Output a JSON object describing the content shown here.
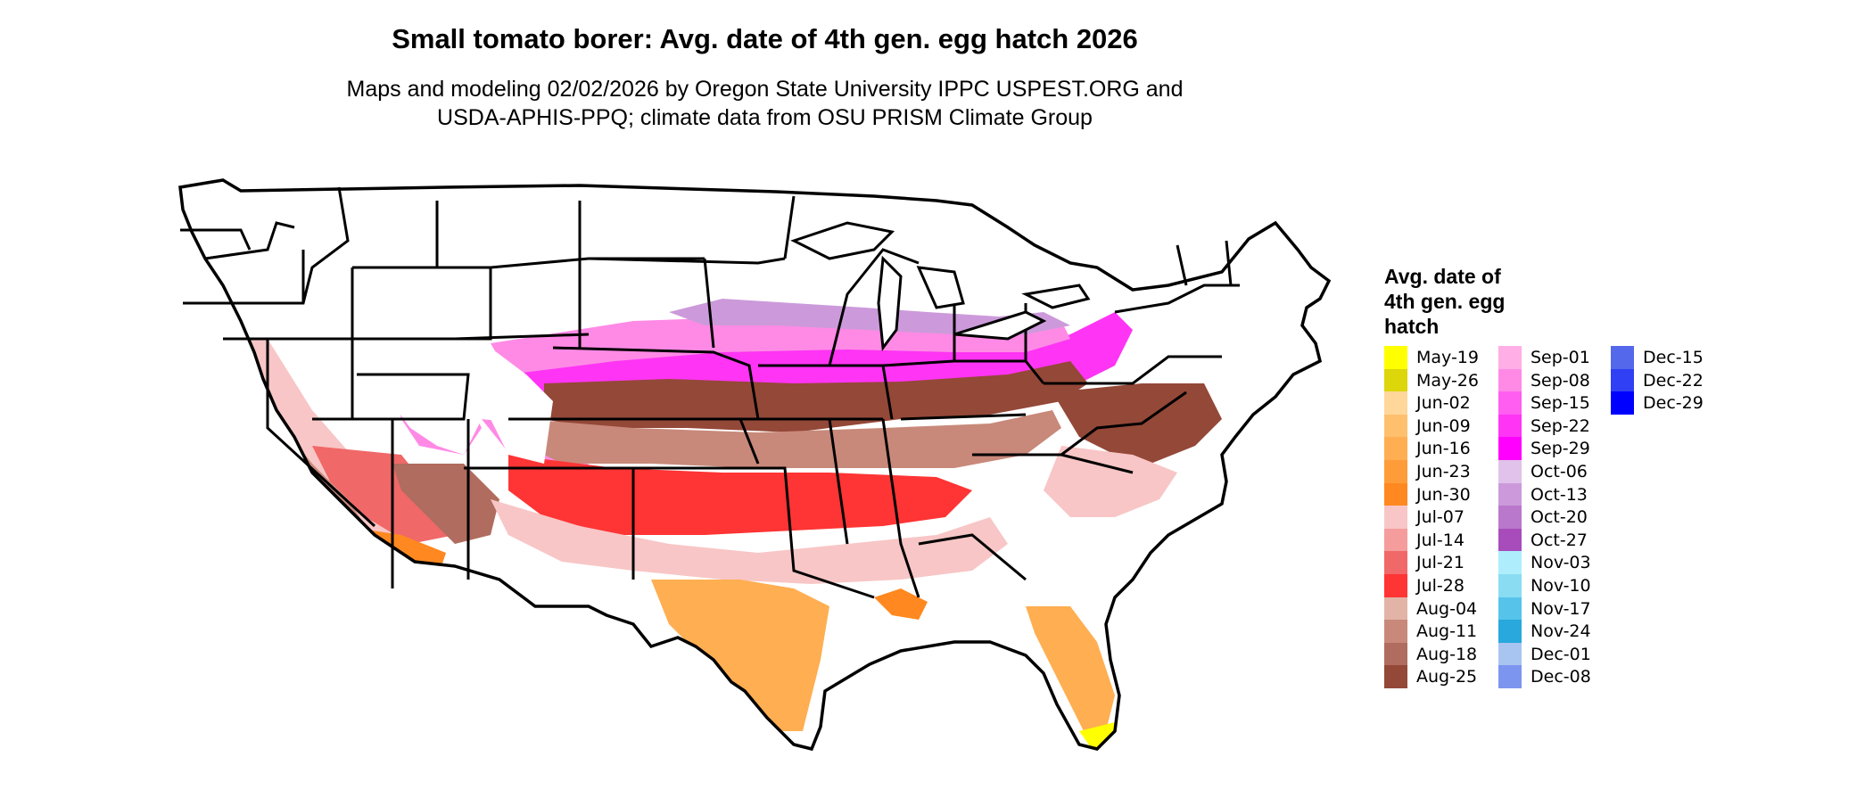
{
  "title": "Small tomato borer: Avg. date of 4th gen. egg hatch 2026",
  "subtitle_line1": "Maps and modeling 02/02/2026 by Oregon State University IPPC USPEST.ORG and",
  "subtitle_line2": "USDA-APHIS-PPQ; climate data from OSU PRISM Climate Group",
  "legend": {
    "title_lines": [
      "Avg. date of",
      "4th gen. egg",
      "hatch"
    ],
    "columns": [
      [
        {
          "label": "May-19",
          "color": "#ffff00"
        },
        {
          "label": "May-26",
          "color": "#dcd60a"
        },
        {
          "label": "Jun-02",
          "color": "#ffd79a"
        },
        {
          "label": "Jun-09",
          "color": "#ffc06e"
        },
        {
          "label": "Jun-16",
          "color": "#ffae52"
        },
        {
          "label": "Jun-23",
          "color": "#ff9c3a"
        },
        {
          "label": "Jun-30",
          "color": "#ff8820"
        },
        {
          "label": "Jul-07",
          "color": "#f8c6c6"
        },
        {
          "label": "Jul-14",
          "color": "#f59c9c"
        },
        {
          "label": "Jul-21",
          "color": "#f06868"
        },
        {
          "label": "Jul-28",
          "color": "#ff3434"
        },
        {
          "label": "Aug-04",
          "color": "#e2b4a8"
        },
        {
          "label": "Aug-11",
          "color": "#c8897a"
        },
        {
          "label": "Aug-18",
          "color": "#b06c5e"
        },
        {
          "label": "Aug-25",
          "color": "#944838"
        }
      ],
      [
        {
          "label": "Sep-01",
          "color": "#ffaee6"
        },
        {
          "label": "Sep-08",
          "color": "#ff8ae6"
        },
        {
          "label": "Sep-15",
          "color": "#ff5ef0"
        },
        {
          "label": "Sep-22",
          "color": "#ff34f4"
        },
        {
          "label": "Sep-29",
          "color": "#ff00ff"
        },
        {
          "label": "Oct-06",
          "color": "#e0c2ea"
        },
        {
          "label": "Oct-13",
          "color": "#cc9ada"
        },
        {
          "label": "Oct-20",
          "color": "#b978cc"
        },
        {
          "label": "Oct-27",
          "color": "#a84cbc"
        },
        {
          "label": "Nov-03",
          "color": "#aeeefc"
        },
        {
          "label": "Nov-10",
          "color": "#8adcf2"
        },
        {
          "label": "Nov-17",
          "color": "#56c4ea"
        },
        {
          "label": "Nov-24",
          "color": "#28a8dc"
        },
        {
          "label": "Dec-01",
          "color": "#a8c4f0"
        },
        {
          "label": "Dec-08",
          "color": "#7c96f0"
        }
      ],
      [
        {
          "label": "Dec-15",
          "color": "#5468ec"
        },
        {
          "label": "Dec-22",
          "color": "#3040f4"
        },
        {
          "label": "Dec-29",
          "color": "#0000ff"
        }
      ]
    ]
  },
  "map_regions": {
    "white": "#ffffff",
    "pink": "#f8c6c6",
    "red": "#ff3434",
    "brown_light": "#c8897a",
    "brown_dark": "#944838",
    "magenta": "#ff34f4",
    "magenta_light": "#ff8ae6",
    "orange": "#ffae52",
    "orange_dark": "#ff8820",
    "yellow": "#ffff00",
    "lavender": "#cc9ada",
    "outline": "#000000"
  }
}
